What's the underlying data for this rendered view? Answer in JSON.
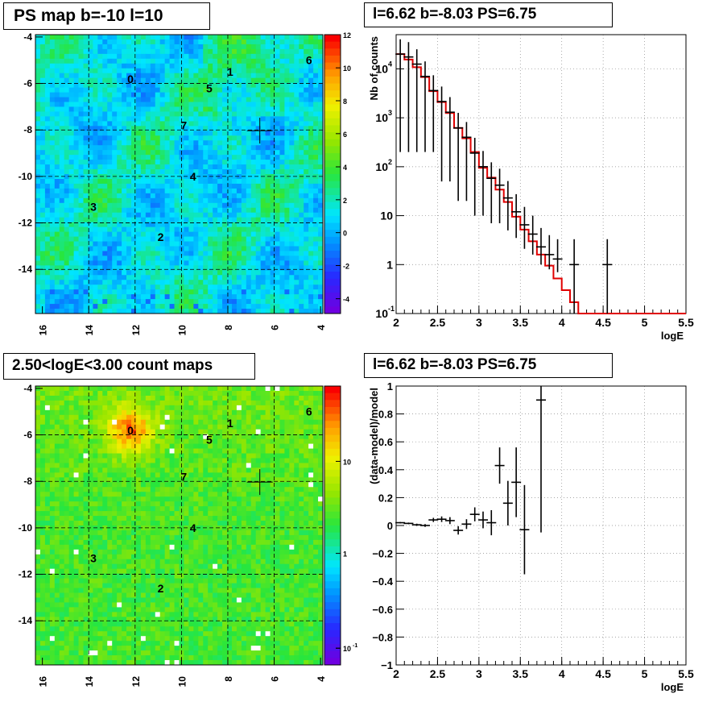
{
  "panels": {
    "ps_map_title": "PS map b=-10 l=10",
    "spectrum_title": "l=6.62 b=-8.03 PS=6.75",
    "count_map_title": "2.50<logE<3.00 count maps",
    "residual_title": "l=6.62 b=-8.03 PS=6.75"
  },
  "maps": {
    "y_ticks": [
      "-4",
      "-6",
      "-8",
      "-10",
      "-12",
      "-14"
    ],
    "x_ticks": [
      "16",
      "14",
      "12",
      "10",
      "8",
      "6",
      "4"
    ],
    "source_labels": [
      "0",
      "1",
      "2",
      "3",
      "4",
      "5",
      "6",
      "7"
    ],
    "ps_colorbar_ticks": [
      "12",
      "10",
      "8",
      "6",
      "4",
      "2",
      "0",
      "-2",
      "-4"
    ],
    "count_colorbar_ticks": [
      "10",
      "1",
      "10",
      "-1"
    ]
  },
  "chart_data": [
    {
      "type": "heatmap",
      "title": "PS map b=-10 l=10",
      "xlim": [
        16.3,
        3.9
      ],
      "ylim": [
        -15.9,
        -3.9
      ],
      "zlim": [
        -5,
        12
      ],
      "xticks": [
        16,
        14,
        12,
        10,
        8,
        6,
        4
      ],
      "yticks": [
        -4,
        -6,
        -8,
        -10,
        -12,
        -14
      ],
      "grid": true,
      "marker": {
        "x": 6.62,
        "y": -8.03
      },
      "sources": [
        {
          "label": "0",
          "x": 12.2,
          "y": -5.8
        },
        {
          "label": "1",
          "x": 7.9,
          "y": -5.5
        },
        {
          "label": "2",
          "x": 10.9,
          "y": -12.6
        },
        {
          "label": "3",
          "x": 13.8,
          "y": -11.3
        },
        {
          "label": "4",
          "x": 9.5,
          "y": -10.0
        },
        {
          "label": "5",
          "x": 8.8,
          "y": -6.2
        },
        {
          "label": "6",
          "x": 4.5,
          "y": -5.0
        },
        {
          "label": "7",
          "x": 9.9,
          "y": -7.8
        }
      ]
    },
    {
      "type": "line",
      "title": "l=6.62 b=-8.03 PS=6.75",
      "xlabel": "logE",
      "ylabel": "Nb of counts",
      "xlim": [
        2,
        5.5
      ],
      "ylim": [
        0.1,
        50000
      ],
      "yscale": "log",
      "xticks": [
        "2",
        "2.5",
        "3",
        "3.5",
        "4",
        "4.5",
        "5",
        "5.5"
      ],
      "yticks": [
        {
          "value": 0.1,
          "label": "10",
          "exp": "-1"
        },
        {
          "value": 1,
          "label": "1",
          "exp": ""
        },
        {
          "value": 10,
          "label": "10",
          "exp": ""
        },
        {
          "value": 100,
          "label": "10",
          "exp": "2"
        },
        {
          "value": 1000,
          "label": "10",
          "exp": "3"
        },
        {
          "value": 10000,
          "label": "10",
          "exp": "4"
        }
      ],
      "grid": true,
      "bin_width": 0.1,
      "model": {
        "x": [
          2.0,
          2.1,
          2.2,
          2.3,
          2.4,
          2.5,
          2.6,
          2.7,
          2.8,
          2.9,
          3.0,
          3.1,
          3.2,
          3.3,
          3.4,
          3.5,
          3.6,
          3.7,
          3.8,
          3.9,
          4.0,
          4.1,
          4.2,
          4.3,
          4.4,
          4.5,
          4.6,
          4.7,
          4.8,
          4.9,
          5.0,
          5.1,
          5.2,
          5.3,
          5.4
        ],
        "values": [
          20000,
          15500,
          10800,
          6800,
          3500,
          2100,
          1250,
          620,
          380,
          200,
          95,
          60,
          34,
          19,
          9.5,
          5.2,
          3.0,
          1.6,
          0.95,
          0.52,
          0.3,
          0.17,
          0.1,
          0.1,
          0.1,
          0.1,
          0.1,
          0.1,
          0.1,
          0.1,
          0.1,
          0.1,
          0.1,
          0.1,
          0.1
        ],
        "color": "#e00000"
      },
      "data": {
        "x": [
          2.05,
          2.15,
          2.25,
          2.35,
          2.45,
          2.55,
          2.65,
          2.75,
          2.85,
          2.95,
          3.05,
          3.15,
          3.25,
          3.35,
          3.45,
          3.55,
          3.65,
          3.75,
          3.85,
          3.95,
          4.15,
          4.55
        ],
        "y": [
          20000,
          17500,
          12500,
          7000,
          3600,
          2150,
          1300,
          620,
          400,
          190,
          100,
          58,
          42,
          23,
          12,
          6.5,
          4.2,
          2.3,
          1.6,
          1.3,
          1.0,
          1.0
        ],
        "err_lo": [
          19800,
          17300,
          12300,
          6800,
          3400,
          2100,
          1250,
          600,
          380,
          180,
          90,
          51,
          35,
          18,
          8.5,
          4.4,
          2.6,
          1.3,
          0.8,
          0.6,
          1.0,
          1.0
        ],
        "err_hi": [
          20200,
          17700,
          12700,
          7200,
          3800,
          2200,
          1350,
          640,
          420,
          200,
          110,
          65,
          49,
          28,
          15.5,
          8.6,
          5.8,
          3.3,
          2.4,
          2.0,
          2.3,
          2.3
        ],
        "color": "#000000"
      }
    },
    {
      "type": "heatmap",
      "title": "2.50<logE<3.00 count maps",
      "xlim": [
        16.3,
        3.9
      ],
      "ylim": [
        -15.9,
        -3.9
      ],
      "zscale": "log",
      "zlim": [
        0.05,
        40
      ],
      "xticks": [
        16,
        14,
        12,
        10,
        8,
        6,
        4
      ],
      "yticks": [
        -4,
        -6,
        -8,
        -10,
        -12,
        -14
      ],
      "grid": true,
      "marker": {
        "x": 6.62,
        "y": -8.03
      },
      "sources": [
        {
          "label": "0",
          "x": 12.2,
          "y": -5.8
        },
        {
          "label": "1",
          "x": 7.9,
          "y": -5.5
        },
        {
          "label": "2",
          "x": 10.9,
          "y": -12.6
        },
        {
          "label": "3",
          "x": 13.8,
          "y": -11.3
        },
        {
          "label": "4",
          "x": 9.5,
          "y": -10.0
        },
        {
          "label": "5",
          "x": 8.8,
          "y": -6.2
        },
        {
          "label": "6",
          "x": 4.5,
          "y": -5.0
        },
        {
          "label": "7",
          "x": 9.9,
          "y": -7.8
        }
      ]
    },
    {
      "type": "scatter",
      "title": "l=6.62 b=-8.03 PS=6.75",
      "xlabel": "logE",
      "ylabel": "(data-model)/model",
      "xlim": [
        2,
        5.5
      ],
      "ylim": [
        -1,
        1
      ],
      "xticks": [
        "2",
        "2.5",
        "3",
        "3.5",
        "4",
        "4.5",
        "5",
        "5.5"
      ],
      "yticks": [
        "1",
        "0.8",
        "0.6",
        "0.4",
        "0.2",
        "0",
        "−0.2",
        "−0.4",
        "−0.6",
        "−0.8",
        "−1"
      ],
      "grid": true,
      "points": {
        "x": [
          2.05,
          2.15,
          2.25,
          2.35,
          2.45,
          2.55,
          2.65,
          2.75,
          2.85,
          2.95,
          3.05,
          3.15,
          3.25,
          3.35,
          3.45,
          3.55,
          3.75
        ],
        "y": [
          0.02,
          0.015,
          0.005,
          0.0,
          0.04,
          0.045,
          0.035,
          -0.035,
          0.01,
          0.08,
          0.04,
          0.02,
          0.43,
          0.16,
          0.31,
          -0.03,
          0.9
        ],
        "err": [
          0.005,
          0.006,
          0.008,
          0.01,
          0.015,
          0.02,
          0.025,
          0.03,
          0.035,
          0.05,
          0.06,
          0.09,
          0.13,
          0.16,
          0.25,
          0.32,
          0.95
        ]
      }
    }
  ]
}
